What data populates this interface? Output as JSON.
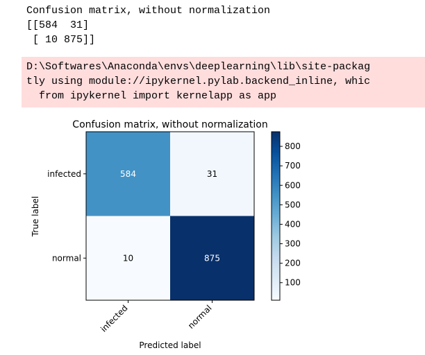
{
  "stdout": {
    "lines": [
      "Confusion matrix, without normalization",
      "[[584  31]",
      " [ 10 875]]"
    ]
  },
  "stderr": {
    "lines": [
      "D:\\Softwares\\Anaconda\\envs\\deeplearning\\lib\\site-packag",
      "tly using module://ipykernel.pylab.backend_inline, whic",
      "  from ipykernel import kernelapp as app"
    ]
  },
  "chart_data": {
    "type": "heatmap",
    "title": "Confusion matrix, without normalization",
    "xlabel": "Predicted label",
    "ylabel": "True label",
    "x_categories": [
      "infected",
      "normal"
    ],
    "y_categories": [
      "infected",
      "normal"
    ],
    "values": [
      [
        584,
        31
      ],
      [
        10,
        875
      ]
    ],
    "colormap": "Blues",
    "colorbar": {
      "min": 10,
      "max": 875,
      "ticks": [
        100,
        200,
        300,
        400,
        500,
        600,
        700,
        800
      ]
    },
    "colors": {
      "cell_584": "#4292c6",
      "cell_31": "#f2f7fd",
      "cell_10": "#f7fbff",
      "cell_875": "#08306b"
    }
  }
}
